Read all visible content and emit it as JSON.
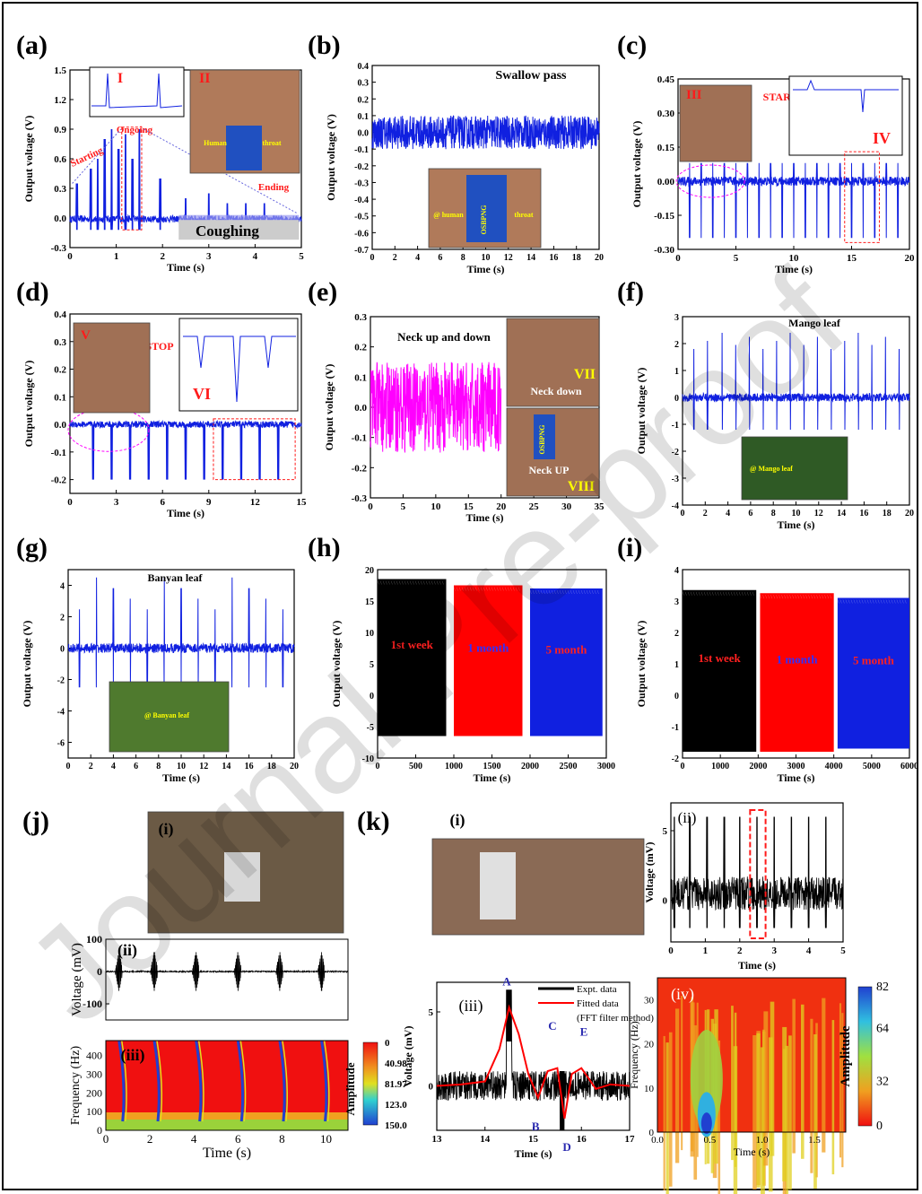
{
  "figure": {
    "watermark": "Journal Pre-proof",
    "colors": {
      "blue": "#1020e0",
      "magenta": "#ff00ff",
      "red": "#ff0000",
      "black": "#000000",
      "annot": "#ff1a1a"
    }
  },
  "chart_data": [
    {
      "panel": "(a)",
      "type": "line",
      "title": "Coughing",
      "ylabel": "Output voltage (V)",
      "xlabel": "Time (s)",
      "xlim": [
        0,
        5
      ],
      "ylim": [
        -0.3,
        1.5
      ],
      "xticks": [
        "0",
        "1",
        "2",
        "3",
        "4",
        "5"
      ],
      "yticks": [
        "-0.3",
        "0.0",
        "0.3",
        "0.6",
        "0.9",
        "1.2",
        "1.5"
      ],
      "annotations": [
        "Starting",
        "Ongoing",
        "Ending",
        "I",
        "II",
        "Human",
        "throat"
      ],
      "series": [
        {
          "peaks_x": [
            0.15,
            0.45,
            0.6,
            0.75,
            0.9,
            1.05,
            1.2,
            1.35,
            1.5,
            1.95,
            2.5,
            3.0,
            3.4,
            3.8,
            4.2
          ],
          "peaks_y": [
            0.35,
            0.5,
            0.6,
            0.8,
            0.9,
            0.7,
            0.85,
            0.6,
            0.9,
            0.4,
            0.2,
            0.25,
            0.15,
            0.15,
            0.15
          ]
        }
      ]
    },
    {
      "panel": "(b)",
      "type": "line",
      "title": "Swallow pass",
      "ylabel": "Output voltage (V)",
      "xlabel": "Time (s)",
      "xlim": [
        0,
        20
      ],
      "ylim": [
        -0.7,
        0.4
      ],
      "xticks": [
        "0",
        "2",
        "4",
        "6",
        "8",
        "10",
        "12",
        "14",
        "16",
        "18",
        "20"
      ],
      "yticks": [
        "-0.7",
        "-0.6",
        "-0.5",
        "-0.4",
        "-0.3",
        "-0.2",
        "-0.1",
        "0.0",
        "0.1",
        "0.2",
        "0.3",
        "0.4"
      ],
      "annotations": [
        "@ human",
        "OSBPNG",
        "throat"
      ],
      "series": [
        {
          "amplitude": 0.1
        }
      ]
    },
    {
      "panel": "(c)",
      "type": "line",
      "title": "START",
      "ylabel": "Output voltage (V)",
      "xlabel": "Time (s)",
      "xlim": [
        0,
        20
      ],
      "ylim": [
        -0.3,
        0.45
      ],
      "xticks": [
        "0",
        "5",
        "10",
        "15",
        "20"
      ],
      "yticks": [
        "-0.30",
        "-0.15",
        "0.00",
        "0.15",
        "0.30",
        "0.45"
      ],
      "annotations": [
        "III",
        "IV"
      ],
      "series": [
        {
          "spike_x": [
            1,
            2,
            3,
            4,
            5,
            6,
            7,
            8,
            9,
            10,
            11,
            12,
            13,
            14,
            15,
            16,
            17,
            18,
            19
          ],
          "spike_min": -0.25,
          "spike_max": 0.08
        }
      ]
    },
    {
      "panel": "(d)",
      "type": "line",
      "title": "STOP",
      "ylabel": "Output voltage (V)",
      "xlabel": "Time (s)",
      "xlim": [
        0,
        15
      ],
      "ylim": [
        -0.25,
        0.4
      ],
      "xticks": [
        "0",
        "3",
        "6",
        "9",
        "12",
        "15"
      ],
      "yticks": [
        "-0.2",
        "-0.1",
        "0.0",
        "0.1",
        "0.2",
        "0.3",
        "0.4"
      ],
      "annotations": [
        "V",
        "VI"
      ],
      "series": [
        {
          "spike_x": [
            1.5,
            2.7,
            3.9,
            5.1,
            6.3,
            7.5,
            8.7,
            9.9,
            11.1,
            12.3,
            13.5
          ],
          "spike_min": -0.2
        }
      ]
    },
    {
      "panel": "(e)",
      "type": "line",
      "title": "Neck up and down",
      "ylabel": "Output voltage (V)",
      "xlabel": "Time (s)",
      "xlim": [
        0,
        35
      ],
      "ylim": [
        -0.3,
        0.3
      ],
      "xticks": [
        "0",
        "5",
        "10",
        "15",
        "20",
        "25",
        "30",
        "35"
      ],
      "yticks": [
        "-0.3",
        "-0.2",
        "-0.1",
        "0.0",
        "0.1",
        "0.2",
        "0.3"
      ],
      "annotations": [
        "Neck down",
        "Neck UP",
        "VII",
        "VIII",
        "OSBPNG"
      ],
      "series": [
        {
          "x_end": 20,
          "amplitude": 0.15
        }
      ]
    },
    {
      "panel": "(f)",
      "type": "line",
      "title": "Mango leaf",
      "ylabel": "Output voltage (V)",
      "xlabel": "Time (s)",
      "xlim": [
        0,
        20
      ],
      "ylim": [
        -4,
        3
      ],
      "xticks": [
        "0",
        "2",
        "4",
        "6",
        "8",
        "10",
        "12",
        "14",
        "16",
        "18",
        "20"
      ],
      "yticks": [
        "-4",
        "-3",
        "-2",
        "-1",
        "0",
        "1",
        "2",
        "3"
      ],
      "annotations": [
        "@ Mango leaf"
      ],
      "series": [
        {
          "spike_x": [
            1,
            2.2,
            3.5,
            4.7,
            5.9,
            7.1,
            8.3,
            9.5,
            10.7,
            11.9,
            13.1,
            14.3,
            15.5,
            16.7,
            17.9,
            19.1
          ],
          "spike_max": 2.4,
          "spike_min": -1.2
        }
      ]
    },
    {
      "panel": "(g)",
      "type": "line",
      "title": "Banyan leaf",
      "ylabel": "Output voltage (V)",
      "xlabel": "Time (s)",
      "xlim": [
        0,
        20
      ],
      "ylim": [
        -7,
        5
      ],
      "xticks": [
        "0",
        "2",
        "4",
        "6",
        "8",
        "10",
        "12",
        "14",
        "16",
        "18",
        "20"
      ],
      "yticks": [
        "-6",
        "-4",
        "-2",
        "0",
        "2",
        "4"
      ],
      "annotations": [
        "@ Banyan leaf"
      ],
      "series": [
        {
          "spike_x": [
            1,
            2.5,
            4,
            5.5,
            7,
            8.5,
            10,
            11.5,
            13,
            14.5,
            16,
            17.5,
            19
          ],
          "spike_max": 4.5,
          "spike_min": -2.5
        }
      ]
    },
    {
      "panel": "(h)",
      "type": "area",
      "ylabel": "Output voltage (V)",
      "xlabel": "Time (s)",
      "xlim": [
        0,
        3000
      ],
      "ylim": [
        -10,
        20
      ],
      "xticks": [
        "0",
        "500",
        "1000",
        "1500",
        "2000",
        "2500",
        "3000"
      ],
      "yticks": [
        "-10",
        "-5",
        "0",
        "5",
        "10",
        "15",
        "20"
      ],
      "series": [
        {
          "name": "1st week",
          "x_range": [
            0,
            900
          ],
          "y_range": [
            -6.5,
            18.5
          ],
          "color": "#000000"
        },
        {
          "name": "1 month",
          "x_range": [
            1000,
            1900
          ],
          "y_range": [
            -6.5,
            17.5
          ],
          "color": "#ff0000"
        },
        {
          "name": "5 month",
          "x_range": [
            2000,
            2950
          ],
          "y_range": [
            -6.5,
            17
          ],
          "color": "#1020e0"
        }
      ]
    },
    {
      "panel": "(i)",
      "type": "area",
      "ylabel": "Output voltage (V)",
      "xlabel": "Time (s)",
      "xlim": [
        0,
        6000
      ],
      "ylim": [
        -2,
        4
      ],
      "xticks": [
        "0",
        "1000",
        "2000",
        "3000",
        "4000",
        "5000",
        "6000"
      ],
      "yticks": [
        "-2",
        "-1",
        "0",
        "1",
        "2",
        "3",
        "4"
      ],
      "series": [
        {
          "name": "1st week",
          "x_range": [
            0,
            1950
          ],
          "y_range": [
            -1.8,
            3.35
          ],
          "color": "#000000"
        },
        {
          "name": "1 month",
          "x_range": [
            2050,
            4000
          ],
          "y_range": [
            -1.8,
            3.25
          ],
          "color": "#ff0000"
        },
        {
          "name": "5 month",
          "x_range": [
            4100,
            6000
          ],
          "y_range": [
            -1.7,
            3.1
          ],
          "color": "#1020e0"
        }
      ]
    },
    {
      "panel": "(j)",
      "type": "line",
      "sub": "(ii)",
      "ylabel": "Voltage (mV)",
      "xlim": [
        0,
        11
      ],
      "ylim": [
        -150,
        100
      ],
      "yticks": [
        "100",
        "0",
        "-100"
      ],
      "series": [
        {
          "burst_x": [
            0.6,
            2.2,
            4.1,
            6.0,
            7.9,
            9.8
          ],
          "amplitude": 60
        }
      ],
      "spectrogram": {
        "sub": "(iii)",
        "ylabel": "Frequency (Hz)",
        "xlabel": "Time (s)",
        "xticks": [
          "0",
          "2",
          "4",
          "6",
          "8",
          "10"
        ],
        "yticks": [
          "0",
          "100",
          "200",
          "300",
          "400"
        ],
        "colorbar_label": "Amplitude",
        "colorbar_ticks": [
          "0",
          "40.98",
          "81.97",
          "123.0",
          "150.0"
        ]
      },
      "photo_label": "(i)"
    },
    {
      "panel": "(k)",
      "type": "line",
      "photo_label": "(i)",
      "sub_ii": {
        "label": "(ii)",
        "ylabel": "Voltage (mV)",
        "xlabel": "Time (s)",
        "xlim": [
          0,
          5
        ],
        "ylim": [
          -3,
          7
        ],
        "xticks": [
          "0",
          "1",
          "2",
          "3",
          "4",
          "5"
        ],
        "yticks": [
          "0",
          "5"
        ]
      },
      "sub_iii": {
        "label": "(iii)",
        "ylabel": "Voltage (mV)",
        "xlabel": "Time (s)",
        "xlim": [
          13,
          17
        ],
        "ylim": [
          -3,
          7
        ],
        "xticks": [
          "13",
          "14",
          "15",
          "16",
          "17"
        ],
        "yticks": [
          "0",
          "5"
        ],
        "legend": [
          "Expt. data",
          "Fitted data",
          "(FFT filter method)"
        ],
        "points": [
          "A",
          "B",
          "C",
          "D",
          "E"
        ]
      },
      "sub_iv": {
        "label": "(iv)",
        "ylabel": "Frequency (Hz)",
        "xlabel": "Time (s)",
        "xlim": [
          0,
          1.8
        ],
        "ylim": [
          0,
          35
        ],
        "xticks": [
          "0.0",
          "0.5",
          "1.0",
          "1.5"
        ],
        "yticks": [
          "0",
          "10",
          "20",
          "30"
        ],
        "colorbar_label": "Amplitude",
        "colorbar_ticks": [
          "82",
          "64",
          "32",
          "0"
        ]
      }
    }
  ]
}
